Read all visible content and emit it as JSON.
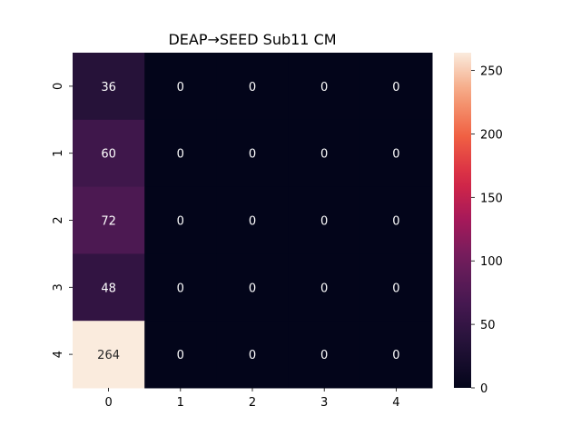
{
  "chart_data": {
    "type": "heatmap",
    "title": "DEAP→SEED Sub11 CM",
    "xlabel": "",
    "ylabel": "",
    "x_categories": [
      "0",
      "1",
      "2",
      "3",
      "4"
    ],
    "y_categories": [
      "0",
      "1",
      "2",
      "3",
      "4"
    ],
    "values": [
      [
        36,
        0,
        0,
        0,
        0
      ],
      [
        60,
        0,
        0,
        0,
        0
      ],
      [
        72,
        0,
        0,
        0,
        0
      ],
      [
        48,
        0,
        0,
        0,
        0
      ],
      [
        264,
        0,
        0,
        0,
        0
      ]
    ],
    "colormap": "rocket",
    "vmin": 0,
    "vmax": 264,
    "colorbar_ticks": [
      0,
      50,
      100,
      150,
      200,
      250
    ],
    "colorbar_tick_labels": [
      "0",
      "50",
      "100",
      "150",
      "200",
      "250"
    ],
    "annotate": true,
    "grid": false,
    "legend": "colorbar-right"
  }
}
